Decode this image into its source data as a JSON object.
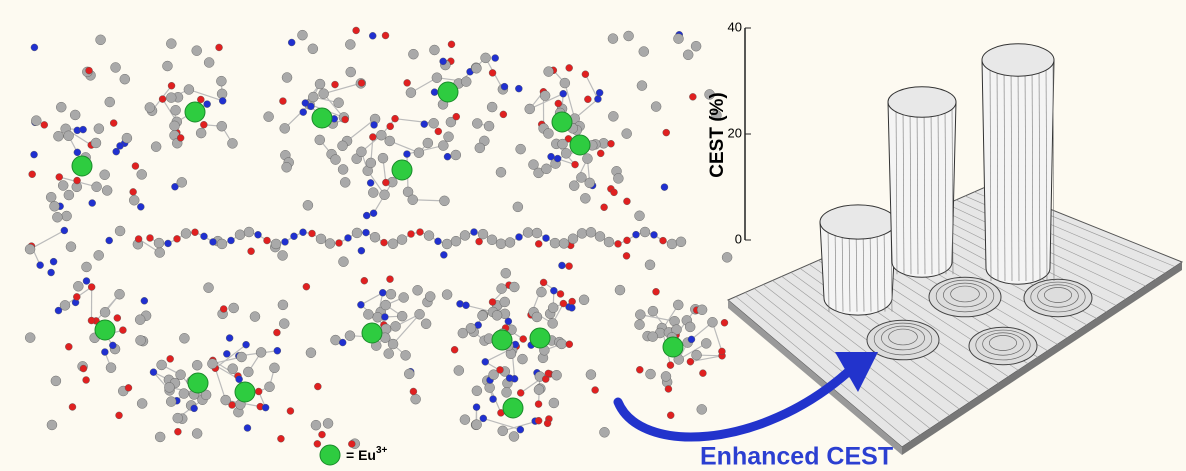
{
  "axis": {
    "label": "CEST (%)",
    "ticks": [
      0,
      20,
      40
    ]
  },
  "legend": {
    "label": "= Eu",
    "superscript": "3+"
  },
  "caption": "Enhanced CEST"
}
